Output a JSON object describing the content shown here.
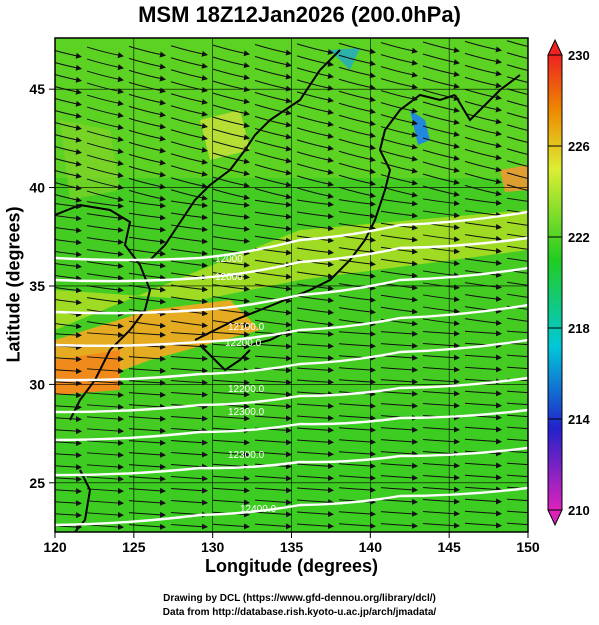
{
  "title": "MSM 18Z12Jan2026 (200.0hPa)",
  "axes": {
    "xlabel": "Longitude (degrees)",
    "ylabel": "Latitude  (degrees)",
    "xticks": [
      120,
      125,
      130,
      135,
      140,
      145,
      150
    ],
    "yticks": [
      25,
      30,
      35,
      40,
      45
    ],
    "xlim": [
      120,
      150
    ],
    "ylim": [
      22.5,
      47.6
    ]
  },
  "colorbar": {
    "ticks": [
      210,
      214,
      218,
      222,
      226,
      230
    ],
    "range": [
      210,
      230
    ],
    "colors": [
      "#cc22aa",
      "#2222cc",
      "#00cccc",
      "#22cc22",
      "#ddee33",
      "#ee8800",
      "#ee2222"
    ]
  },
  "contours": {
    "labels": [
      "12000",
      "12000",
      "12100.0",
      "12200.0",
      "12200.0",
      "12300.0",
      "12300.0",
      "12400.0"
    ]
  },
  "credit": {
    "line1": "Drawing by DCL (https://www.gfd-dennou.org/library/dcl/)",
    "line2": "Data from http://database.rish.kyoto-u.ac.jp/arch/jmadata/"
  },
  "chart_data": {
    "type": "heatmap",
    "title": "MSM 18Z12Jan2026 (200.0hPa)",
    "xlabel": "Longitude (degrees)",
    "ylabel": "Latitude  (degrees)",
    "xlim": [
      120,
      150
    ],
    "ylim": [
      22.5,
      47.6
    ],
    "colorbar_range": [
      210,
      230
    ],
    "colorbar_ticks": [
      210,
      214,
      218,
      222,
      226,
      230
    ],
    "field_description": "temperature shaded, geopotential height contours (white), wind streamlines",
    "contour_levels_approx": [
      11900,
      12000,
      12100,
      12200,
      12300,
      12400
    ],
    "notable_regions": [
      {
        "lon": 121,
        "lat": 31,
        "value": 227
      },
      {
        "lon": 128,
        "lat": 33,
        "value": 225
      },
      {
        "lon": 143.5,
        "lat": 44,
        "value": 217
      },
      {
        "lon": 133,
        "lat": 46,
        "value": 224
      },
      {
        "lon": 149,
        "lat": 41,
        "value": 226
      }
    ]
  }
}
